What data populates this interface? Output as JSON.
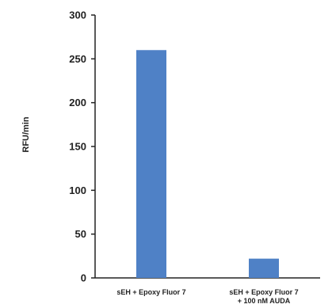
{
  "chart_data": {
    "type": "bar",
    "title": "",
    "xlabel": "",
    "ylabel": "RFU/min",
    "ylim": [
      0,
      300
    ],
    "yticks": [
      0,
      50,
      100,
      150,
      200,
      250,
      300
    ],
    "categories": [
      [
        "sEH + Epoxy Fluor 7"
      ],
      [
        "sEH + Epoxy Fluor 7",
        "+ 100 nM AUDA"
      ]
    ],
    "values": [
      260,
      22
    ],
    "bar_color": "#4F81C6",
    "grid": false,
    "legend": "none"
  }
}
